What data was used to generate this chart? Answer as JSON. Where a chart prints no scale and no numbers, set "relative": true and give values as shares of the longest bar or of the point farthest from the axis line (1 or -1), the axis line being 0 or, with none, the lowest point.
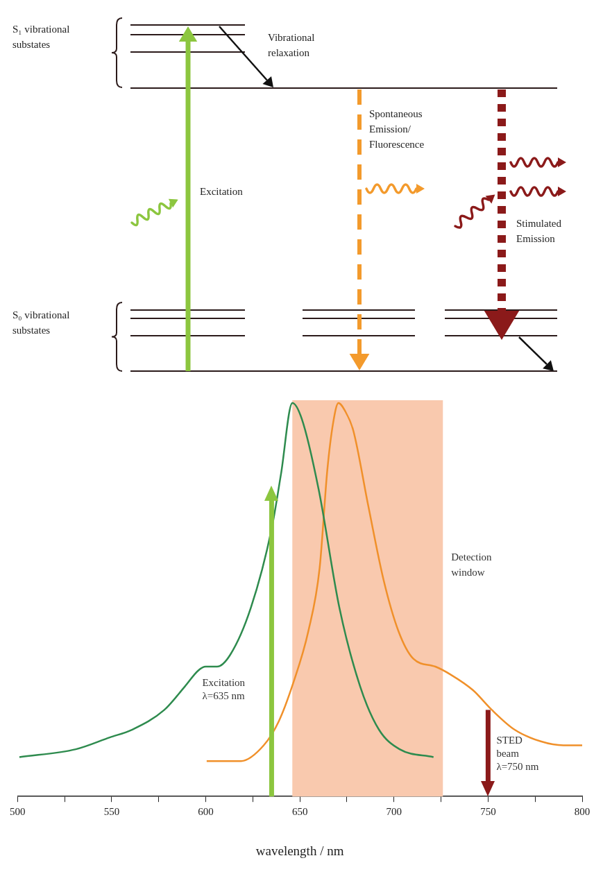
{
  "chart_data": [
    {
      "type": "other",
      "annotations": [
        "S₁ vibrational substates",
        "Vibrational relaxation",
        "Excitation",
        "Spontaneous Emission/ Fluorescence",
        "Stimulated Emission",
        "S₀ vibrational substates"
      ]
    },
    {
      "type": "line",
      "relative": true,
      "xlabel": "wavelength / nm",
      "xlim": [
        500,
        800
      ],
      "xticks": [
        500,
        {
          "value": 525,
          "label": null
        },
        550,
        {
          "value": 575,
          "label": null
        },
        600,
        {
          "value": 625,
          "label": null
        },
        650,
        {
          "value": 675,
          "label": null
        },
        700,
        {
          "value": 725,
          "label": null
        },
        750,
        {
          "value": 775,
          "label": null
        },
        800
      ],
      "grid": false,
      "legend": false,
      "series": [
        {
          "color": "#2e8b4e",
          "x": [
            501,
            531,
            549,
            561,
            578,
            589,
            596,
            600,
            606,
            613,
            624,
            635,
            640,
            646,
            651,
            660,
            671,
            682,
            692,
            703,
            721
          ],
          "values": [
            0.1,
            0.12,
            0.15,
            0.17,
            0.22,
            0.28,
            0.32,
            0.33,
            0.33,
            0.36,
            0.48,
            0.68,
            0.82,
            1.0,
            0.96,
            0.78,
            0.48,
            0.28,
            0.17,
            0.12,
            0.1
          ]
        },
        {
          "color": "#f0902a",
          "x": [
            600.5,
            618.7,
            630.8,
            638.7,
            646.6,
            654.5,
            660.5,
            664.6,
            667.7,
            670.5,
            674,
            678.4,
            686.3,
            694.5,
            702.4,
            710.3,
            722,
            730,
            742,
            752,
            764,
            778,
            790,
            800
          ],
          "values": [
            0.09,
            0.09,
            0.13,
            0.19,
            0.29,
            0.42,
            0.58,
            0.83,
            0.95,
            1.0,
            0.98,
            0.93,
            0.74,
            0.55,
            0.42,
            0.35,
            0.33,
            0.31,
            0.27,
            0.22,
            0.17,
            0.14,
            0.13,
            0.13
          ]
        }
      ],
      "bands": [
        {
          "axis": "x",
          "from": 646,
          "to": 726,
          "label": "Detection window",
          "color": "#f9c9ae"
        }
      ],
      "ref_lines": [
        {
          "axis": "x",
          "value": 635,
          "label": "Excitation λ=635 nm",
          "color": "#8cc63f"
        },
        {
          "axis": "x",
          "value": 750,
          "label": "STED beam λ=750 nm",
          "color": "#8b1a1a"
        }
      ]
    }
  ]
}
